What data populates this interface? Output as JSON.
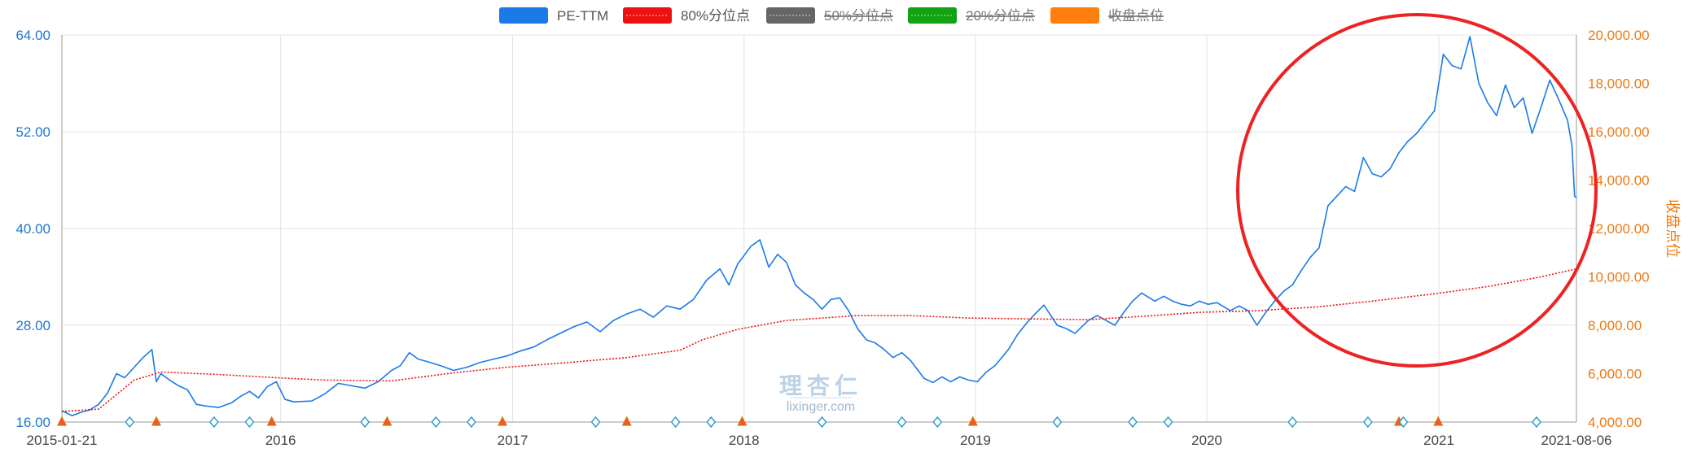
{
  "legend": [
    {
      "label": "PE-TTM",
      "color": "#1a7be8",
      "enabled": true
    },
    {
      "label": "80%分位点",
      "color": "#ee1111",
      "enabled": true
    },
    {
      "label": "50%分位点",
      "color": "#666666",
      "enabled": false
    },
    {
      "label": "20%分位点",
      "color": "#11a311",
      "enabled": false
    },
    {
      "label": "收盘点位",
      "color": "#ff7f0e",
      "enabled": false
    }
  ],
  "watermark": {
    "logo": "理杏仁",
    "site": "lixinger.com"
  },
  "annotation": {
    "type": "circle",
    "color": "#ee2222"
  },
  "chart_data": {
    "type": "line",
    "title": "",
    "xlabel": "",
    "ylabel": "",
    "y2label": "收盘点位",
    "x_start": "2015-01-21",
    "x_end": "2021-08-06",
    "x_ticks": [
      "2015-01-21",
      "2016",
      "2017",
      "2018",
      "2019",
      "2020",
      "2021",
      "2021-08-06"
    ],
    "y_left_ticks": [
      "16.00",
      "28.00",
      "40.00",
      "52.00",
      "64.00"
    ],
    "y_right_ticks": [
      "4,000.00",
      "6,000.00",
      "8,000.00",
      "10,000.00",
      "12,000.00",
      "14,000.00",
      "16,000.00",
      "18,000.00",
      "20,000.00"
    ],
    "ylim": [
      16,
      64
    ],
    "y2lim": [
      4000,
      20000
    ],
    "grid": true,
    "legend_position": "top-center",
    "series": [
      {
        "name": "PE-TTM",
        "axis": "left",
        "style": "solid",
        "color": "#1a7be8",
        "points": [
          [
            "2015-01-21",
            17.4
          ],
          [
            "2015-02-06",
            16.8
          ],
          [
            "2015-02-20",
            17.2
          ],
          [
            "2015-03-06",
            17.5
          ],
          [
            "2015-03-20",
            18.2
          ],
          [
            "2015-04-03",
            19.6
          ],
          [
            "2015-04-17",
            22.0
          ],
          [
            "2015-04-30",
            21.5
          ],
          [
            "2015-05-15",
            22.8
          ],
          [
            "2015-05-29",
            24.0
          ],
          [
            "2015-06-12",
            25.0
          ],
          [
            "2015-06-19",
            21.0
          ],
          [
            "2015-06-26",
            22.0
          ],
          [
            "2015-07-10",
            21.2
          ],
          [
            "2015-07-24",
            20.5
          ],
          [
            "2015-08-07",
            20.0
          ],
          [
            "2015-08-21",
            18.2
          ],
          [
            "2015-09-04",
            18.0
          ],
          [
            "2015-09-25",
            17.8
          ],
          [
            "2015-10-16",
            18.4
          ],
          [
            "2015-10-30",
            19.2
          ],
          [
            "2015-11-13",
            19.8
          ],
          [
            "2015-11-27",
            19.0
          ],
          [
            "2015-12-11",
            20.4
          ],
          [
            "2015-12-25",
            21.0
          ],
          [
            "2016-01-08",
            18.8
          ],
          [
            "2016-01-22",
            18.5
          ],
          [
            "2016-02-19",
            18.6
          ],
          [
            "2016-03-11",
            19.5
          ],
          [
            "2016-04-01",
            20.8
          ],
          [
            "2016-04-22",
            20.5
          ],
          [
            "2016-05-13",
            20.2
          ],
          [
            "2016-06-03",
            21.0
          ],
          [
            "2016-06-24",
            22.4
          ],
          [
            "2016-07-08",
            23.0
          ],
          [
            "2016-07-22",
            24.6
          ],
          [
            "2016-08-05",
            23.8
          ],
          [
            "2016-08-19",
            23.5
          ],
          [
            "2016-09-09",
            23.0
          ],
          [
            "2016-09-30",
            22.4
          ],
          [
            "2016-10-21",
            22.8
          ],
          [
            "2016-11-11",
            23.4
          ],
          [
            "2016-12-02",
            23.8
          ],
          [
            "2016-12-23",
            24.2
          ],
          [
            "2017-01-13",
            24.8
          ],
          [
            "2017-02-03",
            25.3
          ],
          [
            "2017-02-24",
            26.2
          ],
          [
            "2017-03-17",
            27.0
          ],
          [
            "2017-04-07",
            27.8
          ],
          [
            "2017-04-28",
            28.4
          ],
          [
            "2017-05-19",
            27.2
          ],
          [
            "2017-06-09",
            28.6
          ],
          [
            "2017-06-30",
            29.4
          ],
          [
            "2017-07-21",
            30.0
          ],
          [
            "2017-08-11",
            29.0
          ],
          [
            "2017-09-01",
            30.4
          ],
          [
            "2017-09-22",
            30.0
          ],
          [
            "2017-10-13",
            31.2
          ],
          [
            "2017-11-03",
            33.6
          ],
          [
            "2017-11-24",
            35.0
          ],
          [
            "2017-12-08",
            33.0
          ],
          [
            "2017-12-22",
            35.6
          ],
          [
            "2018-01-12",
            37.8
          ],
          [
            "2018-01-26",
            38.6
          ],
          [
            "2018-02-09",
            35.2
          ],
          [
            "2018-02-23",
            36.8
          ],
          [
            "2018-03-09",
            35.8
          ],
          [
            "2018-03-23",
            33.0
          ],
          [
            "2018-04-06",
            32.0
          ],
          [
            "2018-04-20",
            31.2
          ],
          [
            "2018-05-04",
            30.0
          ],
          [
            "2018-05-18",
            31.2
          ],
          [
            "2018-06-01",
            31.4
          ],
          [
            "2018-06-15",
            29.8
          ],
          [
            "2018-06-29",
            27.6
          ],
          [
            "2018-07-13",
            26.2
          ],
          [
            "2018-07-27",
            25.8
          ],
          [
            "2018-08-10",
            25.0
          ],
          [
            "2018-08-24",
            24.0
          ],
          [
            "2018-09-07",
            24.6
          ],
          [
            "2018-09-21",
            23.6
          ],
          [
            "2018-10-12",
            21.4
          ],
          [
            "2018-10-26",
            20.9
          ],
          [
            "2018-11-09",
            21.6
          ],
          [
            "2018-11-23",
            21.0
          ],
          [
            "2018-12-07",
            21.6
          ],
          [
            "2018-12-21",
            21.2
          ],
          [
            "2019-01-04",
            21.0
          ],
          [
            "2019-01-18",
            22.2
          ],
          [
            "2019-02-01",
            23.0
          ],
          [
            "2019-02-22",
            25.0
          ],
          [
            "2019-03-08",
            26.8
          ],
          [
            "2019-03-22",
            28.2
          ],
          [
            "2019-04-05",
            29.4
          ],
          [
            "2019-04-19",
            30.5
          ],
          [
            "2019-05-10",
            28.0
          ],
          [
            "2019-05-24",
            27.6
          ],
          [
            "2019-06-07",
            27.0
          ],
          [
            "2019-06-28",
            28.6
          ],
          [
            "2019-07-12",
            29.2
          ],
          [
            "2019-07-26",
            28.6
          ],
          [
            "2019-08-09",
            28.0
          ],
          [
            "2019-08-23",
            29.6
          ],
          [
            "2019-09-06",
            31.0
          ],
          [
            "2019-09-20",
            32.0
          ],
          [
            "2019-10-11",
            31.0
          ],
          [
            "2019-10-25",
            31.6
          ],
          [
            "2019-11-08",
            31.0
          ],
          [
            "2019-11-22",
            30.6
          ],
          [
            "2019-12-06",
            30.4
          ],
          [
            "2019-12-20",
            31.0
          ],
          [
            "2020-01-03",
            30.6
          ],
          [
            "2020-01-17",
            30.8
          ],
          [
            "2020-02-07",
            29.8
          ],
          [
            "2020-02-21",
            30.4
          ],
          [
            "2020-03-06",
            29.8
          ],
          [
            "2020-03-20",
            28.0
          ],
          [
            "2020-04-03",
            29.6
          ],
          [
            "2020-04-17",
            31.0
          ],
          [
            "2020-05-01",
            32.2
          ],
          [
            "2020-05-15",
            33.0
          ],
          [
            "2020-05-29",
            34.8
          ],
          [
            "2020-06-12",
            36.4
          ],
          [
            "2020-06-26",
            37.6
          ],
          [
            "2020-07-10",
            42.8
          ],
          [
            "2020-07-24",
            44.0
          ],
          [
            "2020-08-07",
            45.2
          ],
          [
            "2020-08-21",
            44.6
          ],
          [
            "2020-09-04",
            48.8
          ],
          [
            "2020-09-18",
            46.8
          ],
          [
            "2020-10-02",
            46.4
          ],
          [
            "2020-10-16",
            47.4
          ],
          [
            "2020-10-30",
            49.4
          ],
          [
            "2020-11-13",
            50.8
          ],
          [
            "2020-11-27",
            51.8
          ],
          [
            "2020-12-11",
            53.2
          ],
          [
            "2020-12-25",
            54.6
          ],
          [
            "2021-01-08",
            61.6
          ],
          [
            "2021-01-22",
            60.2
          ],
          [
            "2021-02-05",
            59.8
          ],
          [
            "2021-02-19",
            63.8
          ],
          [
            "2021-03-05",
            58.0
          ],
          [
            "2021-03-19",
            55.6
          ],
          [
            "2021-04-02",
            54.0
          ],
          [
            "2021-04-16",
            57.8
          ],
          [
            "2021-04-30",
            55.0
          ],
          [
            "2021-05-14",
            56.2
          ],
          [
            "2021-05-28",
            51.8
          ],
          [
            "2021-06-11",
            55.0
          ],
          [
            "2021-06-25",
            58.4
          ],
          [
            "2021-07-09",
            56.0
          ],
          [
            "2021-07-23",
            53.4
          ],
          [
            "2021-07-30",
            50.2
          ],
          [
            "2021-08-03",
            44.0
          ],
          [
            "2021-08-06",
            43.8
          ]
        ]
      },
      {
        "name": "80%分位点",
        "axis": "left",
        "style": "dotted",
        "color": "#ee1111",
        "points": [
          [
            "2015-01-21",
            17.3
          ],
          [
            "2015-03-20",
            17.6
          ],
          [
            "2015-05-15",
            21.2
          ],
          [
            "2015-06-26",
            22.2
          ],
          [
            "2015-09-25",
            21.9
          ],
          [
            "2015-12-25",
            21.5
          ],
          [
            "2016-03-11",
            21.2
          ],
          [
            "2016-06-24",
            21.1
          ],
          [
            "2016-09-30",
            22.1
          ],
          [
            "2016-12-23",
            22.8
          ],
          [
            "2017-03-17",
            23.3
          ],
          [
            "2017-06-30",
            24.0
          ],
          [
            "2017-09-22",
            24.9
          ],
          [
            "2017-10-27",
            26.2
          ],
          [
            "2017-12-22",
            27.5
          ],
          [
            "2018-03-09",
            28.6
          ],
          [
            "2018-06-29",
            29.2
          ],
          [
            "2018-09-21",
            29.2
          ],
          [
            "2018-12-21",
            28.9
          ],
          [
            "2019-03-22",
            28.8
          ],
          [
            "2019-06-28",
            28.7
          ],
          [
            "2019-09-20",
            29.1
          ],
          [
            "2019-12-20",
            29.6
          ],
          [
            "2020-03-20",
            29.8
          ],
          [
            "2020-06-26",
            30.3
          ],
          [
            "2020-09-18",
            31.0
          ],
          [
            "2020-12-25",
            31.9
          ],
          [
            "2021-03-19",
            32.8
          ],
          [
            "2021-06-11",
            34.0
          ],
          [
            "2021-08-06",
            35.0
          ]
        ]
      }
    ],
    "markers": [
      {
        "date": "2015-01-21",
        "shape": "triangle",
        "color": "#ee7a12"
      },
      {
        "date": "2015-05-08",
        "shape": "diamond",
        "color": "#2a9bc8"
      },
      {
        "date": "2015-06-19",
        "shape": "triangle",
        "color": "#ee7a12"
      },
      {
        "date": "2015-09-18",
        "shape": "diamond",
        "color": "#2a9bc8"
      },
      {
        "date": "2015-11-13",
        "shape": "diamond",
        "color": "#2a9bc8"
      },
      {
        "date": "2015-12-18",
        "shape": "triangle",
        "color": "#ee7a12"
      },
      {
        "date": "2016-05-13",
        "shape": "diamond",
        "color": "#2a9bc8"
      },
      {
        "date": "2016-06-17",
        "shape": "triangle",
        "color": "#ee7a12"
      },
      {
        "date": "2016-09-02",
        "shape": "diamond",
        "color": "#2a9bc8"
      },
      {
        "date": "2016-10-28",
        "shape": "diamond",
        "color": "#2a9bc8"
      },
      {
        "date": "2016-12-16",
        "shape": "triangle",
        "color": "#ee7a12"
      },
      {
        "date": "2017-05-12",
        "shape": "diamond",
        "color": "#2a9bc8"
      },
      {
        "date": "2017-06-30",
        "shape": "triangle",
        "color": "#ee7a12"
      },
      {
        "date": "2017-09-15",
        "shape": "diamond",
        "color": "#2a9bc8"
      },
      {
        "date": "2017-11-10",
        "shape": "diamond",
        "color": "#2a9bc8"
      },
      {
        "date": "2017-12-29",
        "shape": "triangle",
        "color": "#ee7a12"
      },
      {
        "date": "2018-05-04",
        "shape": "diamond",
        "color": "#2a9bc8"
      },
      {
        "date": "2018-09-07",
        "shape": "diamond",
        "color": "#2a9bc8"
      },
      {
        "date": "2018-11-02",
        "shape": "diamond",
        "color": "#2a9bc8"
      },
      {
        "date": "2018-12-28",
        "shape": "triangle",
        "color": "#ee7a12"
      },
      {
        "date": "2019-05-10",
        "shape": "diamond",
        "color": "#2a9bc8"
      },
      {
        "date": "2019-09-06",
        "shape": "diamond",
        "color": "#2a9bc8"
      },
      {
        "date": "2019-11-01",
        "shape": "diamond",
        "color": "#2a9bc8"
      },
      {
        "date": "2020-05-15",
        "shape": "diamond",
        "color": "#2a9bc8"
      },
      {
        "date": "2020-09-11",
        "shape": "diamond",
        "color": "#2a9bc8"
      },
      {
        "date": "2020-10-30",
        "shape": "triangle",
        "color": "#ee7a12"
      },
      {
        "date": "2020-11-06",
        "shape": "diamond",
        "color": "#2a9bc8"
      },
      {
        "date": "2020-12-31",
        "shape": "triangle",
        "color": "#ee7a12"
      },
      {
        "date": "2021-06-04",
        "shape": "diamond",
        "color": "#2a9bc8"
      }
    ]
  }
}
